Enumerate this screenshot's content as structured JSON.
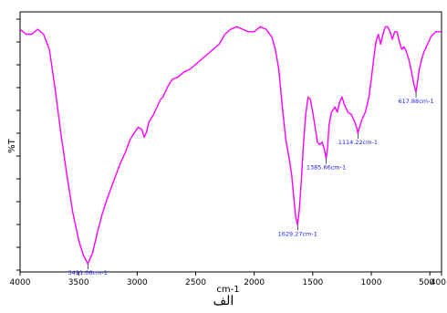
{
  "chart_data": {
    "type": "line",
    "xlabel": "cm-1",
    "ylabel": "%T",
    "xlim": [
      4000,
      400
    ],
    "x_reversed": true,
    "x_ticks": [
      {
        "value": 4000,
        "label": "4000"
      },
      {
        "value": 3500,
        "label": "3500"
      },
      {
        "value": 3000,
        "label": "3000"
      },
      {
        "value": 2500,
        "label": "2500"
      },
      {
        "value": 2000,
        "label": "2000"
      },
      {
        "value": 1500,
        "label": "1500"
      },
      {
        "value": 1000,
        "label": "1000"
      },
      {
        "value": 500,
        "label": "500"
      },
      {
        "value": 400,
        "label": "400"
      }
    ],
    "y_tick_count": 12,
    "line_color": "#ff00ff",
    "label_color": "#1a1aff",
    "annotations": [
      {
        "x": 3421.06,
        "y": 0.975,
        "text": "3421.06cm-1"
      },
      {
        "x": 1629.27,
        "y": 0.82,
        "text": "1629.27cm-1"
      },
      {
        "x": 1385.66,
        "y": 0.555,
        "text": "1385.66cm-1"
      },
      {
        "x": 1114.22,
        "y": 0.455,
        "text": "1114.22cm-1"
      },
      {
        "x": 617.88,
        "y": 0.29,
        "text": "617.88cm-1"
      }
    ],
    "series": [
      {
        "points": [
          [
            4000,
            0.04
          ],
          [
            3950,
            0.06
          ],
          [
            3900,
            0.06
          ],
          [
            3850,
            0.04
          ],
          [
            3800,
            0.06
          ],
          [
            3750,
            0.12
          ],
          [
            3700,
            0.28
          ],
          [
            3650,
            0.46
          ],
          [
            3600,
            0.62
          ],
          [
            3550,
            0.77
          ],
          [
            3500,
            0.88
          ],
          [
            3460,
            0.94
          ],
          [
            3421.06,
            0.975
          ],
          [
            3380,
            0.93
          ],
          [
            3340,
            0.85
          ],
          [
            3300,
            0.78
          ],
          [
            3260,
            0.72
          ],
          [
            3220,
            0.67
          ],
          [
            3180,
            0.62
          ],
          [
            3140,
            0.57
          ],
          [
            3100,
            0.53
          ],
          [
            3060,
            0.48
          ],
          [
            3020,
            0.45
          ],
          [
            2990,
            0.43
          ],
          [
            2960,
            0.44
          ],
          [
            2940,
            0.47
          ],
          [
            2920,
            0.45
          ],
          [
            2900,
            0.41
          ],
          [
            2860,
            0.38
          ],
          [
            2820,
            0.34
          ],
          [
            2800,
            0.32
          ],
          [
            2780,
            0.31
          ],
          [
            2740,
            0.27
          ],
          [
            2700,
            0.24
          ],
          [
            2650,
            0.23
          ],
          [
            2600,
            0.21
          ],
          [
            2550,
            0.2
          ],
          [
            2500,
            0.18
          ],
          [
            2450,
            0.16
          ],
          [
            2400,
            0.14
          ],
          [
            2350,
            0.12
          ],
          [
            2300,
            0.1
          ],
          [
            2250,
            0.06
          ],
          [
            2200,
            0.04
          ],
          [
            2150,
            0.03
          ],
          [
            2100,
            0.04
          ],
          [
            2050,
            0.05
          ],
          [
            2000,
            0.05
          ],
          [
            1950,
            0.03
          ],
          [
            1900,
            0.04
          ],
          [
            1850,
            0.07
          ],
          [
            1820,
            0.12
          ],
          [
            1790,
            0.2
          ],
          [
            1760,
            0.35
          ],
          [
            1730,
            0.48
          ],
          [
            1700,
            0.56
          ],
          [
            1680,
            0.62
          ],
          [
            1660,
            0.72
          ],
          [
            1645,
            0.79
          ],
          [
            1629.27,
            0.82
          ],
          [
            1615,
            0.76
          ],
          [
            1600,
            0.66
          ],
          [
            1580,
            0.5
          ],
          [
            1560,
            0.38
          ],
          [
            1540,
            0.31
          ],
          [
            1520,
            0.32
          ],
          [
            1500,
            0.37
          ],
          [
            1480,
            0.43
          ],
          [
            1460,
            0.49
          ],
          [
            1440,
            0.5
          ],
          [
            1420,
            0.49
          ],
          [
            1400,
            0.52
          ],
          [
            1385.66,
            0.555
          ],
          [
            1375,
            0.52
          ],
          [
            1360,
            0.42
          ],
          [
            1340,
            0.37
          ],
          [
            1310,
            0.35
          ],
          [
            1290,
            0.37
          ],
          [
            1270,
            0.33
          ],
          [
            1250,
            0.31
          ],
          [
            1230,
            0.34
          ],
          [
            1200,
            0.37
          ],
          [
            1170,
            0.38
          ],
          [
            1140,
            0.41
          ],
          [
            1120,
            0.44
          ],
          [
            1114.22,
            0.455
          ],
          [
            1100,
            0.43
          ],
          [
            1080,
            0.4
          ],
          [
            1050,
            0.37
          ],
          [
            1020,
            0.31
          ],
          [
            1000,
            0.24
          ],
          [
            980,
            0.16
          ],
          [
            960,
            0.09
          ],
          [
            940,
            0.06
          ],
          [
            920,
            0.1
          ],
          [
            900,
            0.06
          ],
          [
            880,
            0.03
          ],
          [
            860,
            0.03
          ],
          [
            840,
            0.05
          ],
          [
            820,
            0.08
          ],
          [
            800,
            0.05
          ],
          [
            780,
            0.05
          ],
          [
            760,
            0.09
          ],
          [
            740,
            0.12
          ],
          [
            720,
            0.11
          ],
          [
            700,
            0.13
          ],
          [
            680,
            0.16
          ],
          [
            660,
            0.2
          ],
          [
            640,
            0.25
          ],
          [
            625,
            0.28
          ],
          [
            617.88,
            0.29
          ],
          [
            605,
            0.25
          ],
          [
            590,
            0.2
          ],
          [
            570,
            0.16
          ],
          [
            550,
            0.13
          ],
          [
            530,
            0.11
          ],
          [
            510,
            0.09
          ],
          [
            490,
            0.07
          ],
          [
            470,
            0.06
          ],
          [
            450,
            0.05
          ],
          [
            430,
            0.05
          ],
          [
            400,
            0.05
          ]
        ]
      }
    ]
  },
  "caption": "الف"
}
